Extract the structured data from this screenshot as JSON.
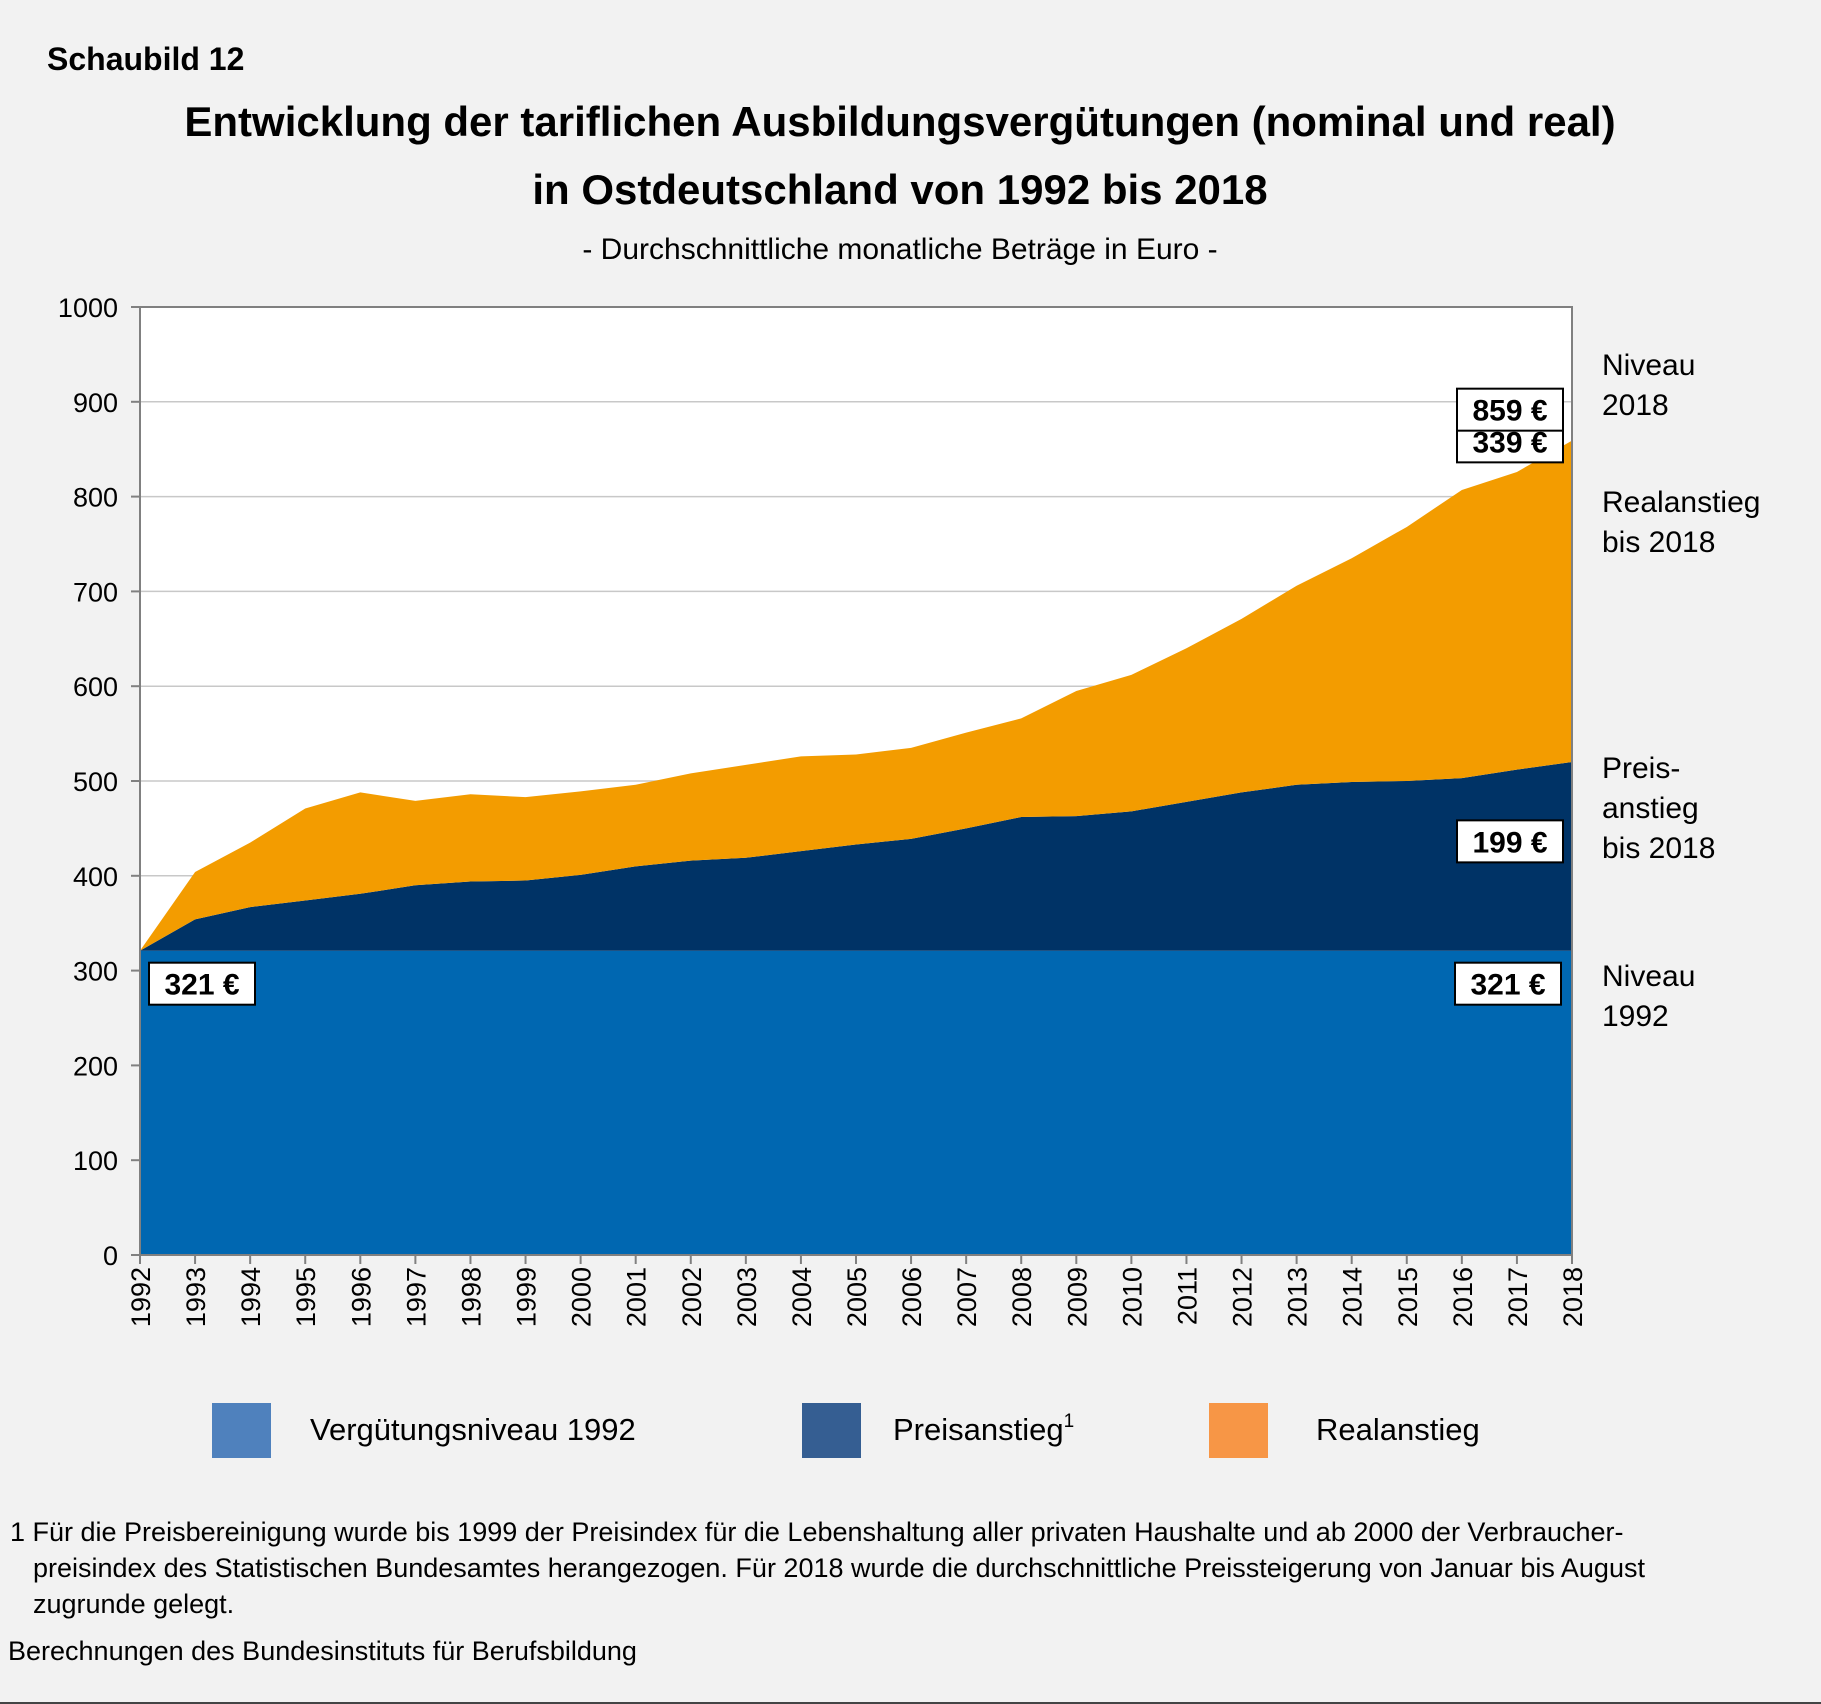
{
  "chart_label": "Schaubild 12",
  "chart_data": {
    "type": "area",
    "stacked": true,
    "title": "Entwicklung der tariflichen Ausbildungsvergütungen (nominal und real)",
    "title_line2": "in Ostdeutschland von 1992 bis 2018",
    "subtitle": "- Durchschnittliche monatliche Beträge in Euro -",
    "xlabel": "",
    "ylabel": "",
    "ylim": [
      0,
      1000
    ],
    "yticks": [
      0,
      100,
      200,
      300,
      400,
      500,
      600,
      700,
      800,
      900,
      1000
    ],
    "grid": true,
    "categories": [
      "1992",
      "1993",
      "1994",
      "1995",
      "1996",
      "1997",
      "1998",
      "1999",
      "2000",
      "2001",
      "2002",
      "2003",
      "2004",
      "2005",
      "2006",
      "2007",
      "2008",
      "2009",
      "2010",
      "2011",
      "2012",
      "2013",
      "2014",
      "2015",
      "2016",
      "2017",
      "2018"
    ],
    "series": [
      {
        "name": "Vergütungsniveau 1992",
        "color": "#0067b1",
        "values": [
          321,
          321,
          321,
          321,
          321,
          321,
          321,
          321,
          321,
          321,
          321,
          321,
          321,
          321,
          321,
          321,
          321,
          321,
          321,
          321,
          321,
          321,
          321,
          321,
          321,
          321,
          321
        ]
      },
      {
        "name": "Preisanstieg",
        "color": "#003366",
        "values": [
          0,
          33,
          46,
          53,
          60,
          69,
          73,
          74,
          80,
          89,
          95,
          98,
          105,
          112,
          118,
          129,
          141,
          142,
          147,
          157,
          167,
          175,
          178,
          179,
          182,
          191,
          199
        ]
      },
      {
        "name": "Realanstieg",
        "color": "#f39c00",
        "values": [
          0,
          50,
          68,
          97,
          107,
          89,
          92,
          88,
          88,
          86,
          92,
          98,
          100,
          95,
          96,
          101,
          104,
          132,
          144,
          162,
          183,
          210,
          236,
          268,
          304,
          314,
          339
        ]
      }
    ],
    "totals": [
      321,
      404,
      435,
      471,
      488,
      479,
      486,
      483,
      489,
      496,
      508,
      517,
      526,
      528,
      535,
      551,
      566,
      595,
      612,
      640,
      671,
      706,
      735,
      768,
      807,
      826,
      859
    ],
    "annotations": [
      {
        "id": "start",
        "text": "321 €"
      },
      {
        "id": "base-end",
        "text": "321 €"
      },
      {
        "id": "price-end",
        "text": "199 €"
      },
      {
        "id": "real-end",
        "text": "339 €"
      },
      {
        "id": "total-end",
        "text": "859 €"
      }
    ],
    "side_labels": [
      {
        "id": "total",
        "lines": [
          "Niveau",
          "2018"
        ]
      },
      {
        "id": "real",
        "lines": [
          "Realanstieg",
          "bis 2018"
        ]
      },
      {
        "id": "price",
        "lines": [
          "Preis-",
          "anstieg",
          "bis 2018"
        ]
      },
      {
        "id": "base",
        "lines": [
          "Niveau",
          "1992"
        ]
      }
    ],
    "legend": [
      {
        "label": "Vergütungsniveau 1992",
        "color": "#4f81bd",
        "superscript": ""
      },
      {
        "label": "Preisanstieg",
        "color": "#355e92",
        "superscript": "1"
      },
      {
        "label": "Realanstieg",
        "color": "#f79646",
        "superscript": ""
      }
    ],
    "legend_position": "bottom"
  },
  "footnote": {
    "lines": [
      "1 Für die Preisbereinigung wurde bis 1999 der Preisindex für die Lebenshaltung aller privaten Haushalte und ab 2000 der Verbraucher-",
      "preisindex des Statistischen Bundesamtes herangezogen. Für 2018 wurde die durchschnittliche Preissteigerung von Januar bis August",
      "zugrunde gelegt."
    ],
    "source": "Berechnungen des Bundesinstituts für Berufsbildung"
  }
}
